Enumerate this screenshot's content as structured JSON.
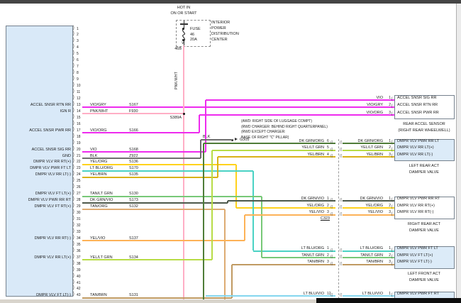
{
  "fuse_circuit": {
    "hot_line1": "HOT IN",
    "hot_line2": "ON OR START",
    "fuse_word": "FUSE",
    "fuse_number": "46",
    "fuse_rating": "20A",
    "pdc_lines": [
      "INTERIOR",
      "POWER",
      "DISTRIBUTION",
      "CENTER"
    ],
    "circuit_id": "46B",
    "wire_color_label": "PNK/WHT",
    "splice": "S389A"
  },
  "ground": {
    "wire_color_label": "BLK",
    "ground_id": "G305",
    "location_note": [
      "(AWD: RIGHT SIDE OF LUGGAGE COMPT)",
      "(RWD CHARGER: BEHIND RIGHT QUARTERPANEL)",
      "(RWD EXCEPT CHARGER:",
      "BASE OF RIGHT \"C\" PILLAR)"
    ]
  },
  "inline_connector": {
    "id": "C323"
  },
  "module_connector": {
    "total_pins_visible": 43,
    "pins": [
      {
        "pin": 13,
        "signal": "ACCEL SNSR RTN RR",
        "wire": "VIO/GRY",
        "splice": "S167"
      },
      {
        "pin": 14,
        "signal": "IGN R",
        "wire": "PNK/WHT",
        "splice": "F930"
      },
      {
        "pin": 17,
        "signal": "ACCEL SNSR PWR RR",
        "wire": "VIO/ORG",
        "splice": "S166"
      },
      {
        "pin": 20,
        "signal": "ACCEL SNSR SIG RR",
        "wire": "VIO",
        "splice": "S168"
      },
      {
        "pin": 21,
        "signal": "GND",
        "wire": "BLK",
        "splice": "Z922"
      },
      {
        "pin": 22,
        "signal": "DMPR VLV RR RT(+)",
        "wire": "YEL/ORG",
        "splice": "S136"
      },
      {
        "pin": 23,
        "signal": "DMPR VLV PWR FT LT",
        "wire": "LT BLU/ORG",
        "splice": "S170"
      },
      {
        "pin": 24,
        "signal": "DMPR VLV RR LT(-)",
        "wire": "YEL/BRN",
        "splice": "S135"
      },
      {
        "pin": 27,
        "signal": "DMPR VLV FT LT(+)",
        "wire": "TAN/LT GRN",
        "splice": "S130"
      },
      {
        "pin": 28,
        "signal": "DMPR VLV PWR RR RT",
        "wire": "DK GRN/VIO",
        "splice": "S173"
      },
      {
        "pin": 29,
        "signal": "DMPR VLV FT RT(+)",
        "wire": "TAN/ORG",
        "splice": "S132"
      },
      {
        "pin": 34,
        "signal": "DMPR VLV RR RT(-)",
        "wire": "YEL/VIO",
        "splice": "S137"
      },
      {
        "pin": 37,
        "signal": "DMPR VLV RR LT(+)",
        "wire": "YEL/LT GRN",
        "splice": "S134"
      },
      {
        "pin": 43,
        "signal": "DMPR VLV FT LT(-)",
        "wire": "TAN/BRN",
        "splice": "S131"
      }
    ]
  },
  "wire_colors": {
    "VIO": "#ee2bee",
    "VIO/GRY": "#ee2bee",
    "VIO/ORG": "#ee2bee",
    "PNK/WHT": "#ffaec6",
    "BLK": "#6e6e6e",
    "YEL/ORG": "#ffd21c",
    "LT BLU/ORG": "#4ad2c4",
    "YEL/BRN": "#d9b218",
    "TAN/LT GRN": "#77c877",
    "DK GRN/VIO": "#4d594b",
    "TAN/ORG": "#ddab72",
    "YEL/VIO": "#fdb257",
    "YEL/LT GRN": "#b8dc46",
    "TAN/BRN": "#c09a62",
    "DK GRN/ORG": "#4f7d38",
    "LT BLU/VIO": "#84d6ee"
  },
  "connectors": [
    {
      "id": "rear_accel_sensor",
      "caption": [
        "REAR ACCEL SENSOR",
        "(RIGHT REAR WHEELWELL)"
      ],
      "rows": [
        {
          "pin": "1",
          "wire": "VIO",
          "signal": "ACCEL SNSR SIG RR"
        },
        {
          "pin": "2",
          "wire": "VIO/GRY",
          "signal": "ACCEL SNSR RTN RR"
        },
        {
          "pin": "3",
          "wire": "VIO/ORG",
          "signal": "ACCEL SNSR PWR RR"
        }
      ]
    },
    {
      "id": "left_rear_damper",
      "caption": [
        "LEFT REAR ACT",
        "DAMPER VALVE"
      ],
      "rows": [
        {
          "pin": "1",
          "wire": "DK GRN/ORG",
          "signal": "DMPR VLV PWR RR LT",
          "c323_pin": "6"
        },
        {
          "pin": "2",
          "wire": "YEL/LT GRN",
          "signal": "DMPR VLV RR LT(+)",
          "c323_pin": "5"
        },
        {
          "pin": "3",
          "wire": "YEL/BRN",
          "signal": "DMPR VLV RR LT(-)",
          "c323_pin": "4"
        }
      ]
    },
    {
      "id": "right_rear_damper",
      "caption": [
        "RIGHT REAR ACT",
        "DAMPER VALVE"
      ],
      "rows": [
        {
          "pin": "1",
          "wire": "DK GRN/VIO",
          "signal": "DMPR VLV PWR RR RT",
          "c323_pin": "1"
        },
        {
          "pin": "2",
          "wire": "YEL/ORG",
          "signal": "DMPR VLV RR RT(+)",
          "c323_pin": "2"
        },
        {
          "pin": "3",
          "wire": "YEL/VIO",
          "signal": "DMPR VLV RR RT(-)",
          "c323_pin": "3"
        }
      ]
    },
    {
      "id": "left_front_damper",
      "caption": [
        "LEFT FRONT ACT",
        "DAMPER VALVE"
      ],
      "rows": [
        {
          "pin": "1",
          "wire": "LT BLU/ORG",
          "signal": "DMPR VLV PWR FT LT",
          "c323_pin": "1"
        },
        {
          "pin": "2",
          "wire": "TAN/LT GRN",
          "signal": "DMPR VLV FT LT(+)",
          "c323_pin": "2"
        },
        {
          "pin": "3",
          "wire": "TAN/BRN",
          "signal": "DMPR VLV FT LT(-)",
          "c323_pin": "3"
        }
      ]
    },
    {
      "id": "right_front_damper",
      "caption": [],
      "rows": [
        {
          "pin": "1",
          "wire": "LT BLU/VIO",
          "signal": "DMPR VLV PWR FT RT",
          "c323_pin": "12"
        }
      ]
    }
  ]
}
